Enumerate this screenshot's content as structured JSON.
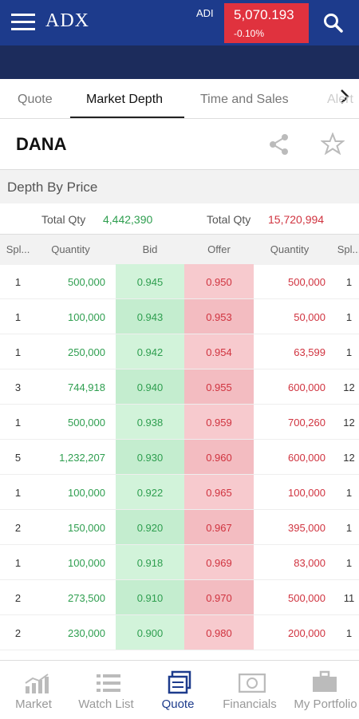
{
  "header": {
    "logo": "ADX",
    "index_name": "ADI",
    "index_value": "5,070.193",
    "index_change": "-0.10%"
  },
  "tabs": [
    "Quote",
    "Market Depth",
    "Time and Sales",
    "Alert"
  ],
  "active_tab": 1,
  "symbol": "DANA",
  "section_title": "Depth By Price",
  "totals": {
    "bid_label": "Total Qty",
    "bid_qty": "4,442,390",
    "offer_label": "Total Qty",
    "offer_qty": "15,720,994"
  },
  "columns": [
    "Spl...",
    "Quantity",
    "Bid",
    "Offer",
    "Quantity",
    "Spl..."
  ],
  "rows": [
    [
      "1",
      "500,000",
      "0.945",
      "0.950",
      "500,000",
      "1"
    ],
    [
      "1",
      "100,000",
      "0.943",
      "0.953",
      "50,000",
      "1"
    ],
    [
      "1",
      "250,000",
      "0.942",
      "0.954",
      "63,599",
      "1"
    ],
    [
      "3",
      "744,918",
      "0.940",
      "0.955",
      "600,000",
      "12"
    ],
    [
      "1",
      "500,000",
      "0.938",
      "0.959",
      "700,260",
      "12"
    ],
    [
      "5",
      "1,232,207",
      "0.930",
      "0.960",
      "600,000",
      "12"
    ],
    [
      "1",
      "100,000",
      "0.922",
      "0.965",
      "100,000",
      "1"
    ],
    [
      "2",
      "150,000",
      "0.920",
      "0.967",
      "395,000",
      "1"
    ],
    [
      "1",
      "100,000",
      "0.918",
      "0.969",
      "83,000",
      "1"
    ],
    [
      "2",
      "273,500",
      "0.910",
      "0.970",
      "500,000",
      "11"
    ],
    [
      "2",
      "230,000",
      "0.900",
      "0.980",
      "200,000",
      "1"
    ]
  ],
  "nav": [
    "Market",
    "Watch List",
    "Quote",
    "Financials",
    "My Portfolio"
  ],
  "active_nav": 2
}
